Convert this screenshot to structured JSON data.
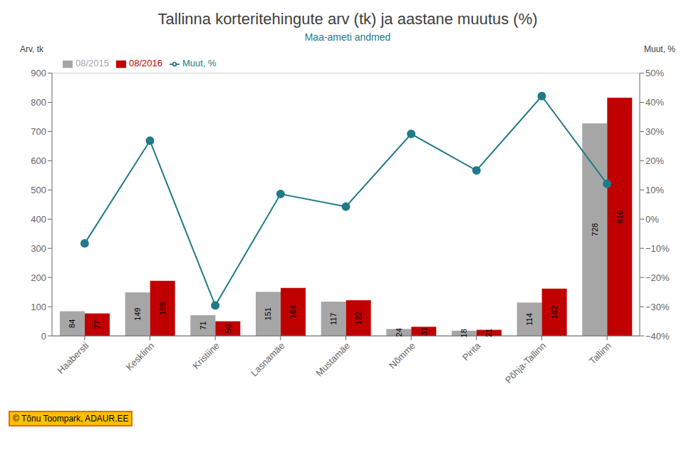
{
  "chart_data": {
    "type": "bar",
    "title": "Tallinna korteritehingute arv (tk) ja aastane muutus (%)",
    "subtitle": "Maa-ameti andmed",
    "ylabel": "Arv, tk",
    "y2label": "Muut, %",
    "categories": [
      "Haabersti",
      "Kesklinn",
      "Kristiine",
      "Lasnamäe",
      "Mustamäe",
      "Nõmme",
      "Pirita",
      "Põhja-Tallinn",
      "Tallinn"
    ],
    "series": [
      {
        "name": "08/2015",
        "type": "bar",
        "color": "#a6a6a6",
        "data_labels": true,
        "values": [
          84,
          149,
          71,
          151,
          117,
          24,
          18,
          114,
          728
        ]
      },
      {
        "name": "08/2016",
        "type": "bar",
        "color": "#c00000",
        "data_labels": true,
        "values": [
          77,
          189,
          50,
          164,
          122,
          31,
          21,
          162,
          816
        ]
      },
      {
        "name": "Muut, %",
        "type": "line",
        "axis": "y2",
        "color": "#217a87",
        "marker": "circle",
        "values": [
          -0.0833,
          0.2685,
          -0.2958,
          0.0861,
          0.0427,
          0.2917,
          0.1667,
          0.4211,
          0.1209
        ]
      }
    ],
    "ylim": [
      0,
      900
    ],
    "yticks": [
      0,
      100,
      200,
      300,
      400,
      500,
      600,
      700,
      800,
      900
    ],
    "y2lim": [
      -0.4,
      0.5
    ],
    "y2ticks": [
      {
        "value": -0.4,
        "label": "−40%"
      },
      {
        "value": -0.3,
        "label": "−30%"
      },
      {
        "value": -0.2,
        "label": "−20%"
      },
      {
        "value": -0.1,
        "label": "−10%"
      },
      {
        "value": 0.0,
        "label": "0%"
      },
      {
        "value": 0.1,
        "label": "10%"
      },
      {
        "value": 0.2,
        "label": "20%"
      },
      {
        "value": 0.3,
        "label": "30%"
      },
      {
        "value": 0.4,
        "label": "40%"
      },
      {
        "value": 0.5,
        "label": "50%"
      }
    ],
    "grid": true,
    "legend": "upper left",
    "annotations": [
      "© Tõnu Toompark, ADAUR.EE"
    ]
  }
}
